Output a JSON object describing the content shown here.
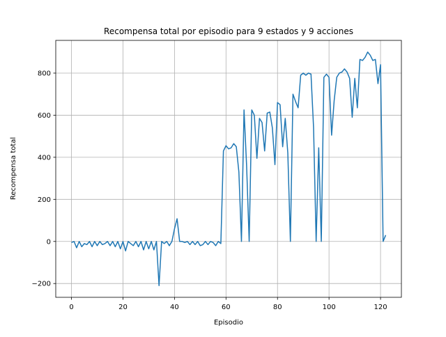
{
  "chart_data": {
    "type": "line",
    "title": "Recompensa total por episodio para 9 estados y 9 acciones",
    "x_label": "Episodio",
    "y_label": "Recompensa total",
    "x": [
      0,
      1,
      2,
      3,
      4,
      5,
      6,
      7,
      8,
      9,
      10,
      11,
      12,
      13,
      14,
      15,
      16,
      17,
      18,
      19,
      20,
      21,
      22,
      23,
      24,
      25,
      26,
      27,
      28,
      29,
      30,
      31,
      32,
      33,
      34,
      35,
      36,
      37,
      38,
      39,
      40,
      41,
      42,
      43,
      44,
      45,
      46,
      47,
      48,
      49,
      50,
      51,
      52,
      53,
      54,
      55,
      56,
      57,
      58,
      59,
      60,
      61,
      62,
      63,
      64,
      65,
      66,
      67,
      68,
      69,
      70,
      71,
      72,
      73,
      74,
      75,
      76,
      77,
      78,
      79,
      80,
      81,
      82,
      83,
      84,
      85,
      86,
      87,
      88,
      89,
      90,
      91,
      92,
      93,
      94,
      95,
      96,
      97,
      98,
      99,
      100,
      101,
      102,
      103,
      104,
      105,
      106,
      107,
      108,
      109,
      110,
      111,
      112,
      113,
      114,
      115,
      116,
      117,
      118,
      119,
      120,
      121,
      122
    ],
    "series": [
      {
        "name": "Recompensa total",
        "color": "#1f77b4",
        "values": [
          -5,
          0,
          -30,
          0,
          -25,
          -10,
          -15,
          0,
          -25,
          0,
          -20,
          0,
          -15,
          -10,
          0,
          -20,
          0,
          -25,
          0,
          -35,
          0,
          -45,
          0,
          -10,
          -20,
          0,
          -25,
          0,
          -40,
          0,
          -35,
          0,
          -40,
          0,
          -210,
          0,
          -10,
          0,
          -20,
          0,
          60,
          108,
          0,
          0,
          -5,
          0,
          -15,
          0,
          -15,
          0,
          -20,
          -15,
          0,
          -15,
          0,
          -5,
          -20,
          0,
          -10,
          430,
          455,
          440,
          445,
          465,
          450,
          330,
          0,
          625,
          360,
          0,
          625,
          600,
          395,
          585,
          565,
          430,
          610,
          615,
          540,
          365,
          660,
          650,
          450,
          585,
          420,
          0,
          700,
          665,
          635,
          790,
          800,
          790,
          800,
          795,
          540,
          0,
          445,
          0,
          780,
          795,
          780,
          505,
          670,
          780,
          800,
          805,
          820,
          805,
          775,
          590,
          775,
          635,
          865,
          860,
          875,
          900,
          885,
          860,
          865,
          750,
          840,
          0,
          30
        ]
      }
    ],
    "xlim": [
      -6.1,
      128.1
    ],
    "ylim": [
      -265.5,
      955.5
    ],
    "xticks": [
      0,
      20,
      40,
      60,
      80,
      100,
      120
    ],
    "yticks": [
      {
        "value": -200,
        "label": "−200"
      },
      0,
      200,
      400,
      600,
      800
    ],
    "grid": true
  }
}
